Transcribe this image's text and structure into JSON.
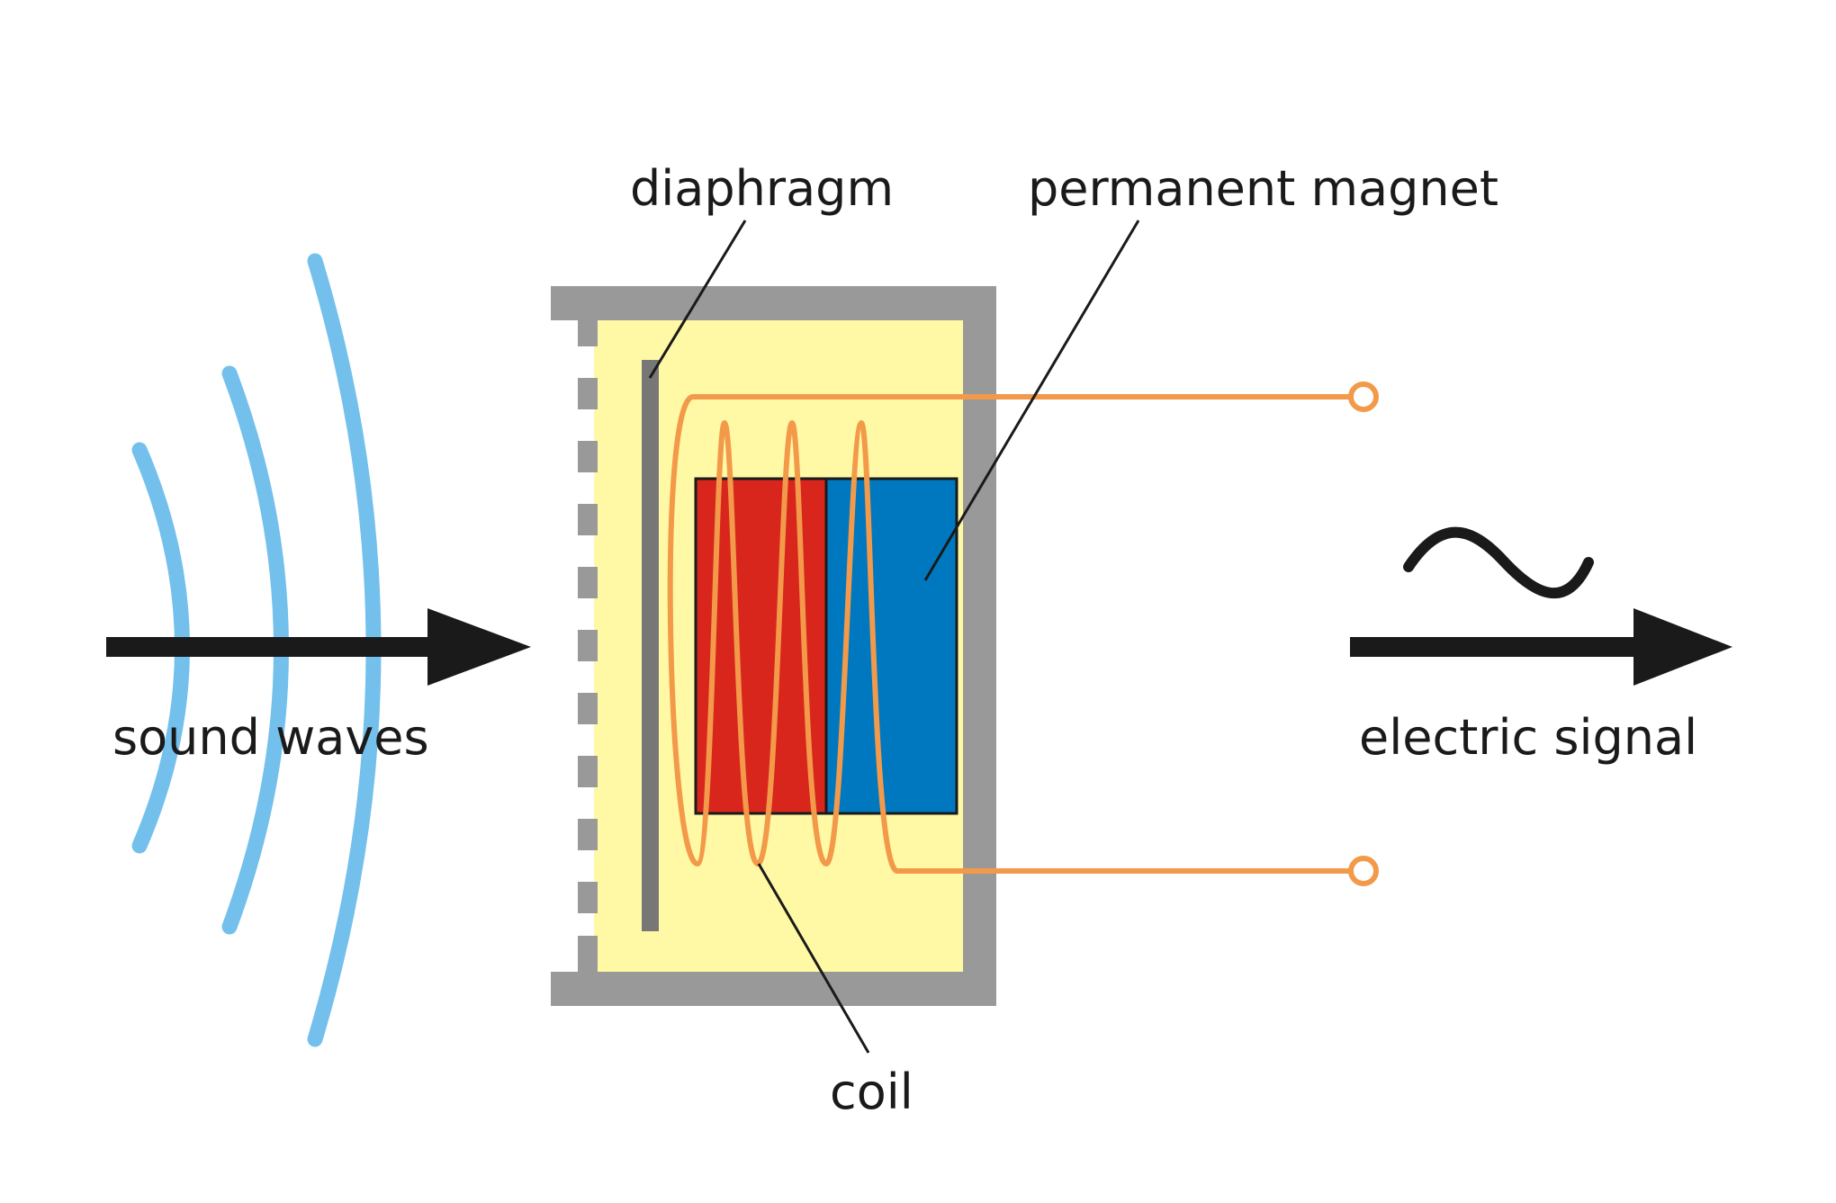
{
  "labels": {
    "diaphragm": "diaphragm",
    "permanent_magnet": "permanent magnet",
    "sound_waves": "sound waves",
    "electric_signal": "electric signal",
    "coil": "coil"
  },
  "colors": {
    "sound_waves": "#74c0ec",
    "arrow": "#1a1a1a",
    "housing": "#999999",
    "housing_fill": "#fff9a6",
    "diaphragm": "#777777",
    "magnet_north": "#d9261c",
    "magnet_south": "#0078c0",
    "coil_wire": "#f29a4a",
    "leader_line": "#1a1a1a"
  },
  "symbols": {
    "ac_signal": "tilde-wave-icon",
    "terminal": "terminal-circle-icon"
  }
}
